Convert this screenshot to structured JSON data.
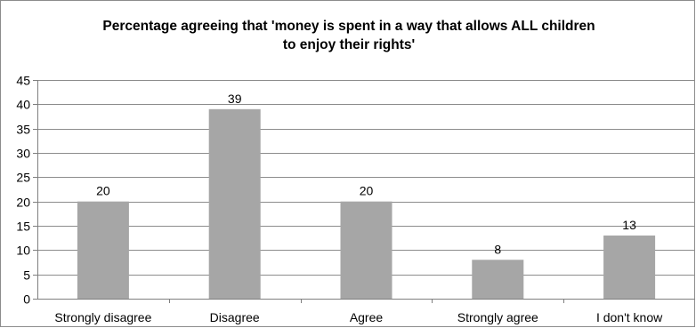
{
  "chart_data": {
    "type": "bar",
    "title_line1": "Percentage agreeing that 'money is spent in a way that allows ALL children",
    "title_line2": "to enjoy their rights'",
    "categories": [
      "Strongly disagree",
      "Disagree",
      "Agree",
      "Strongly agree",
      "I don't know"
    ],
    "values": [
      20,
      39,
      20,
      8,
      13
    ],
    "ylim": [
      0,
      45
    ],
    "ytick_step": 5,
    "grid": true,
    "legend": "none",
    "colors": {
      "bar": "#a6a6a6",
      "grid": "#8c8c8c",
      "axis": "#7f7f7f"
    }
  }
}
